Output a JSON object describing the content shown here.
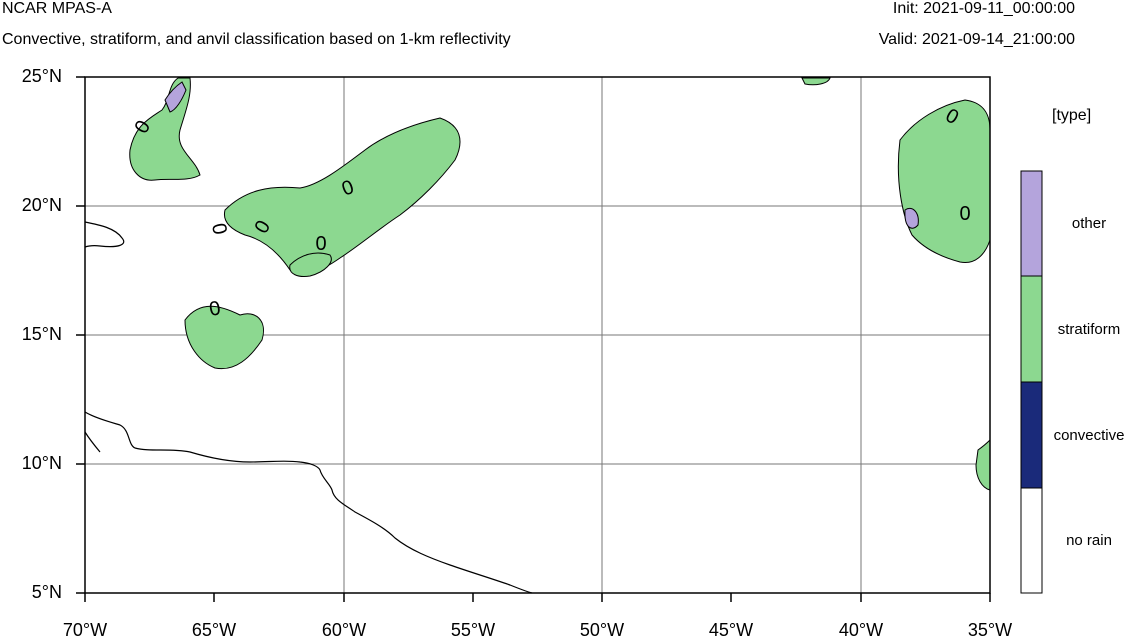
{
  "header": {
    "title": "NCAR MPAS-A",
    "subtitle": "Convective, stratiform, and anvil classification based on 1-km reflectivity",
    "init": "Init: 2021-09-11_00:00:00",
    "valid": "Valid: 2021-09-14_21:00:00"
  },
  "axes": {
    "lat_labels": [
      "25°N",
      "20°N",
      "15°N",
      "10°N",
      "5°N"
    ],
    "lon_labels": [
      "70°W",
      "65°W",
      "60°W",
      "55°W",
      "50°W",
      "45°W",
      "40°W",
      "35°W"
    ]
  },
  "legend": {
    "title": "[type]",
    "entries": [
      {
        "label": "other",
        "color": "#b4a4dc"
      },
      {
        "label": "stratiform",
        "color": "#8cd890"
      },
      {
        "label": "convective",
        "color": "#1a2a7a"
      },
      {
        "label": "no rain",
        "color": "#ffffff"
      }
    ]
  },
  "contour_label": "0"
}
